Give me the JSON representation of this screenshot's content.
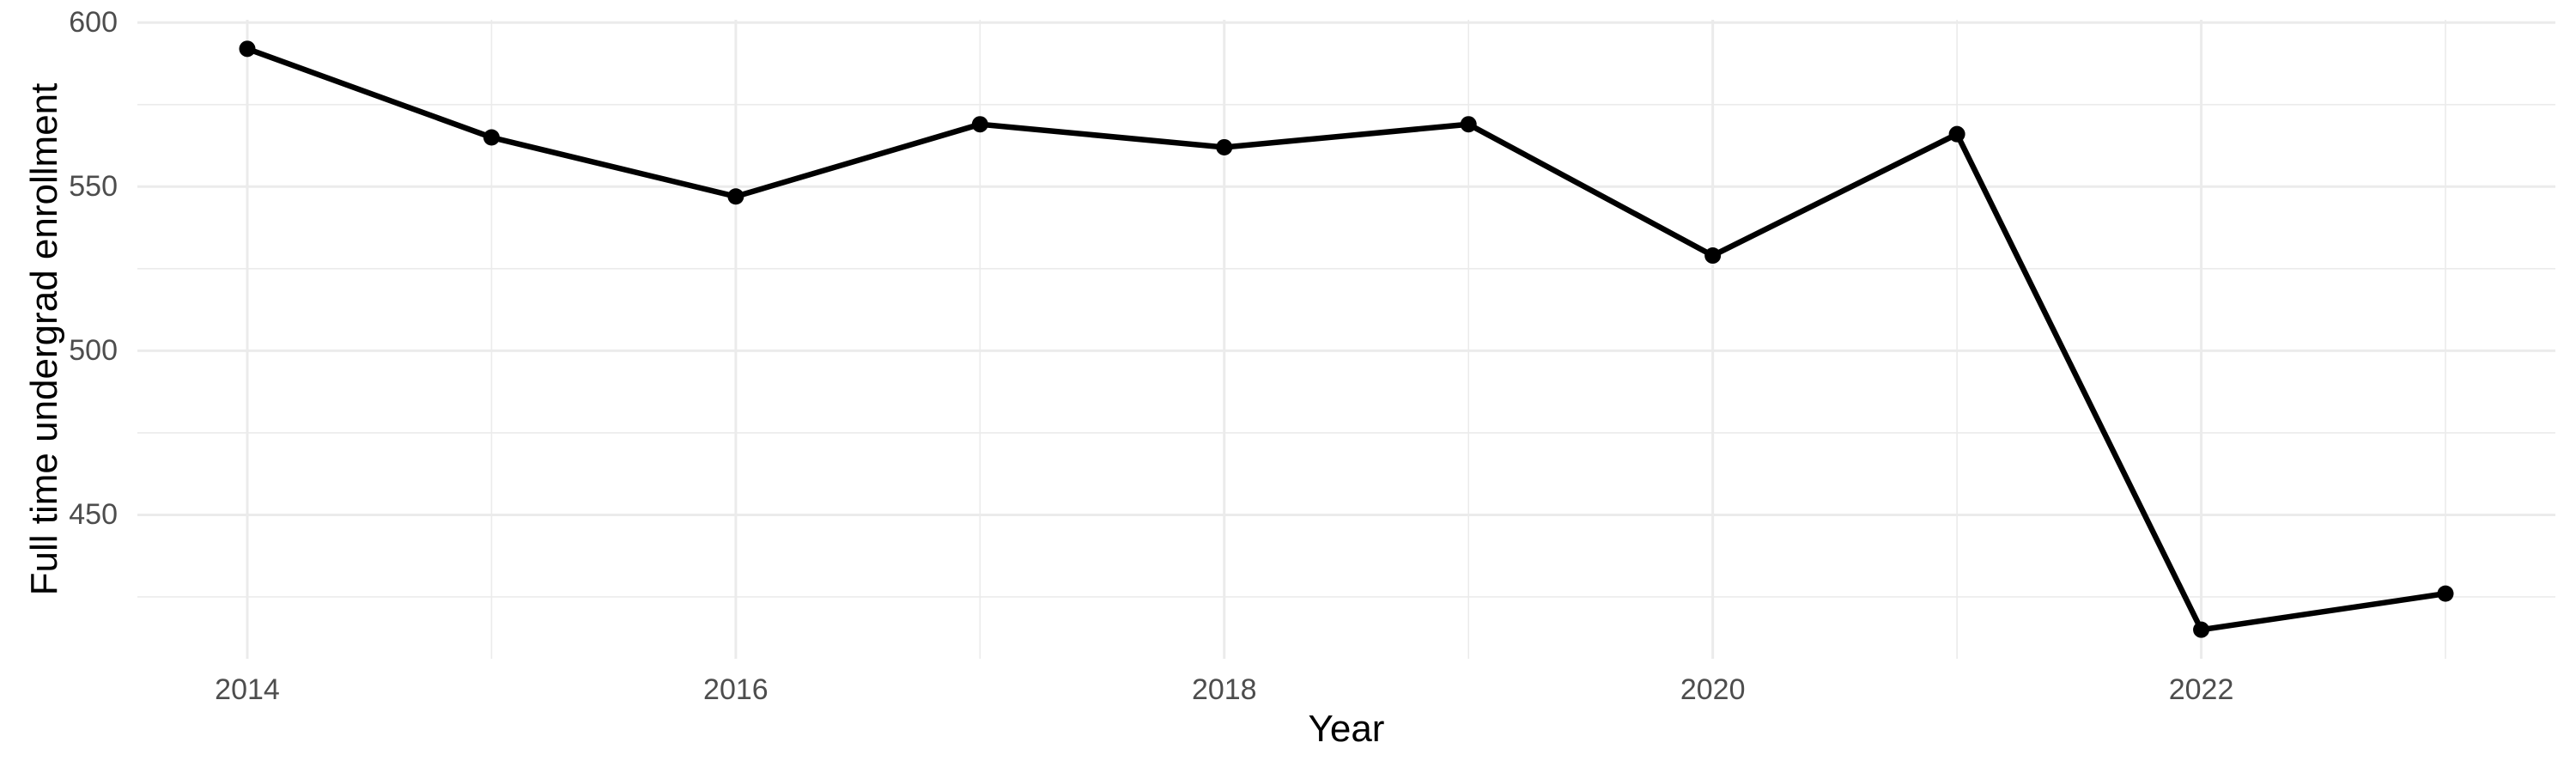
{
  "figure": {
    "background": "#ffffff"
  },
  "chart_data": {
    "type": "line",
    "title": "",
    "xlabel": "Year",
    "ylabel": "Full time undergrad enrollment",
    "x": [
      2014,
      2015,
      2016,
      2017,
      2018,
      2019,
      2020,
      2021,
      2022,
      2023
    ],
    "series": [
      {
        "name": "Full time undergrad enrollment",
        "values": [
          592,
          565,
          547,
          569,
          562,
          569,
          529,
          566,
          415,
          426
        ]
      }
    ],
    "x_major_ticks": [
      2014,
      2016,
      2018,
      2020,
      2022
    ],
    "x_minor_gridlines": [
      2015,
      2017,
      2019,
      2021,
      2023
    ],
    "y_major_ticks": [
      600,
      550,
      500,
      450
    ],
    "y_minor_gridlines": [
      575,
      525,
      475,
      425
    ],
    "xlim": [
      2013.55,
      2023.45
    ],
    "ylim": [
      406.15,
      600.85
    ],
    "grid": "major-and-minor",
    "legend_position": "none",
    "marker": "filled-circle",
    "colors": {
      "line": "#000000",
      "point": "#000000",
      "grid": "#ebebeb",
      "tick_label": "#4d4d4d",
      "axis_title": "#000000",
      "background": "#ffffff"
    }
  }
}
